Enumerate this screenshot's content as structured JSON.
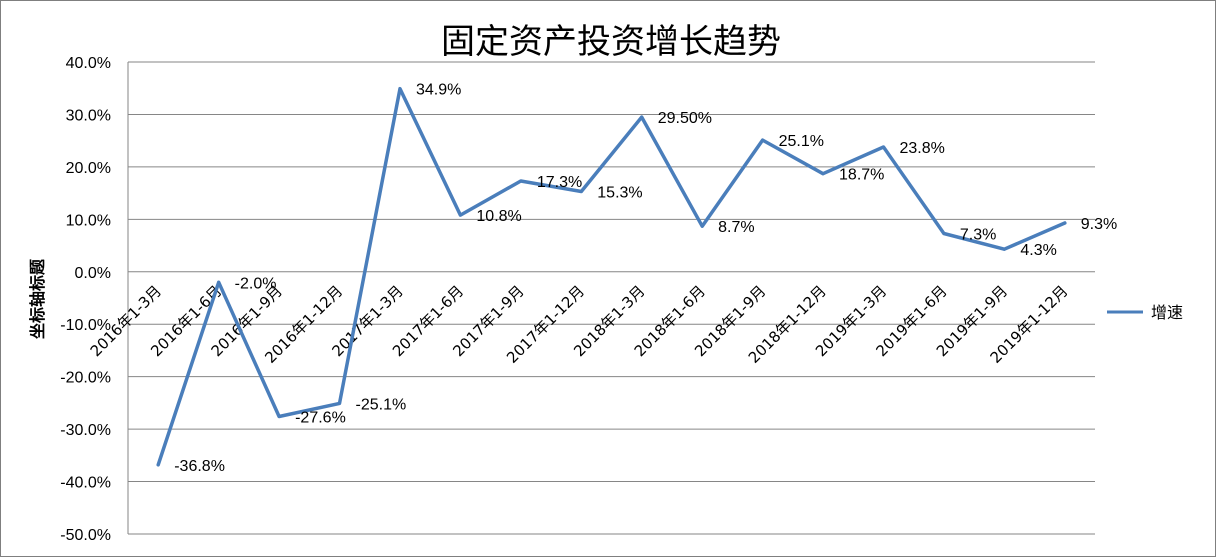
{
  "chart_data": {
    "type": "line",
    "title": "固定资产投资增长趋势",
    "ylabel": "坐标轴标题",
    "xlabel": "",
    "categories": [
      "2016年1-3月",
      "2016年1-6月",
      "2016年1-9月",
      "2016年1-12月",
      "2017年1-3月",
      "2017年1-6月",
      "2017年1-9月",
      "2017年1-12月",
      "2018年1-3月",
      "2018年1-6月",
      "2018年1-9月",
      "2018年1-12月",
      "2019年1-3月",
      "2019年1-6月",
      "2019年1-9月",
      "2019年1-12月"
    ],
    "series": [
      {
        "name": "增速",
        "values": [
          -36.8,
          -2.0,
          -27.6,
          -25.1,
          34.9,
          10.8,
          17.3,
          15.3,
          29.5,
          8.7,
          25.1,
          18.7,
          23.8,
          7.3,
          4.3,
          9.3
        ],
        "labels": [
          "-36.8%",
          "-2.0%",
          "-27.6%",
          "-25.1%",
          "34.9%",
          "10.8%",
          "17.3%",
          "15.3%",
          "29.50%",
          "8.7%",
          "25.1%",
          "18.7%",
          "23.8%",
          "7.3%",
          "4.3%",
          "9.3%"
        ],
        "color": "#4a7ebb"
      }
    ],
    "ylim": [
      -50,
      40
    ],
    "yticks": [
      "-50.0%",
      "-40.0%",
      "-30.0%",
      "-20.0%",
      "-10.0%",
      "0.0%",
      "10.0%",
      "20.0%",
      "30.0%",
      "40.0%"
    ],
    "grid": true,
    "legend_position": "right"
  }
}
